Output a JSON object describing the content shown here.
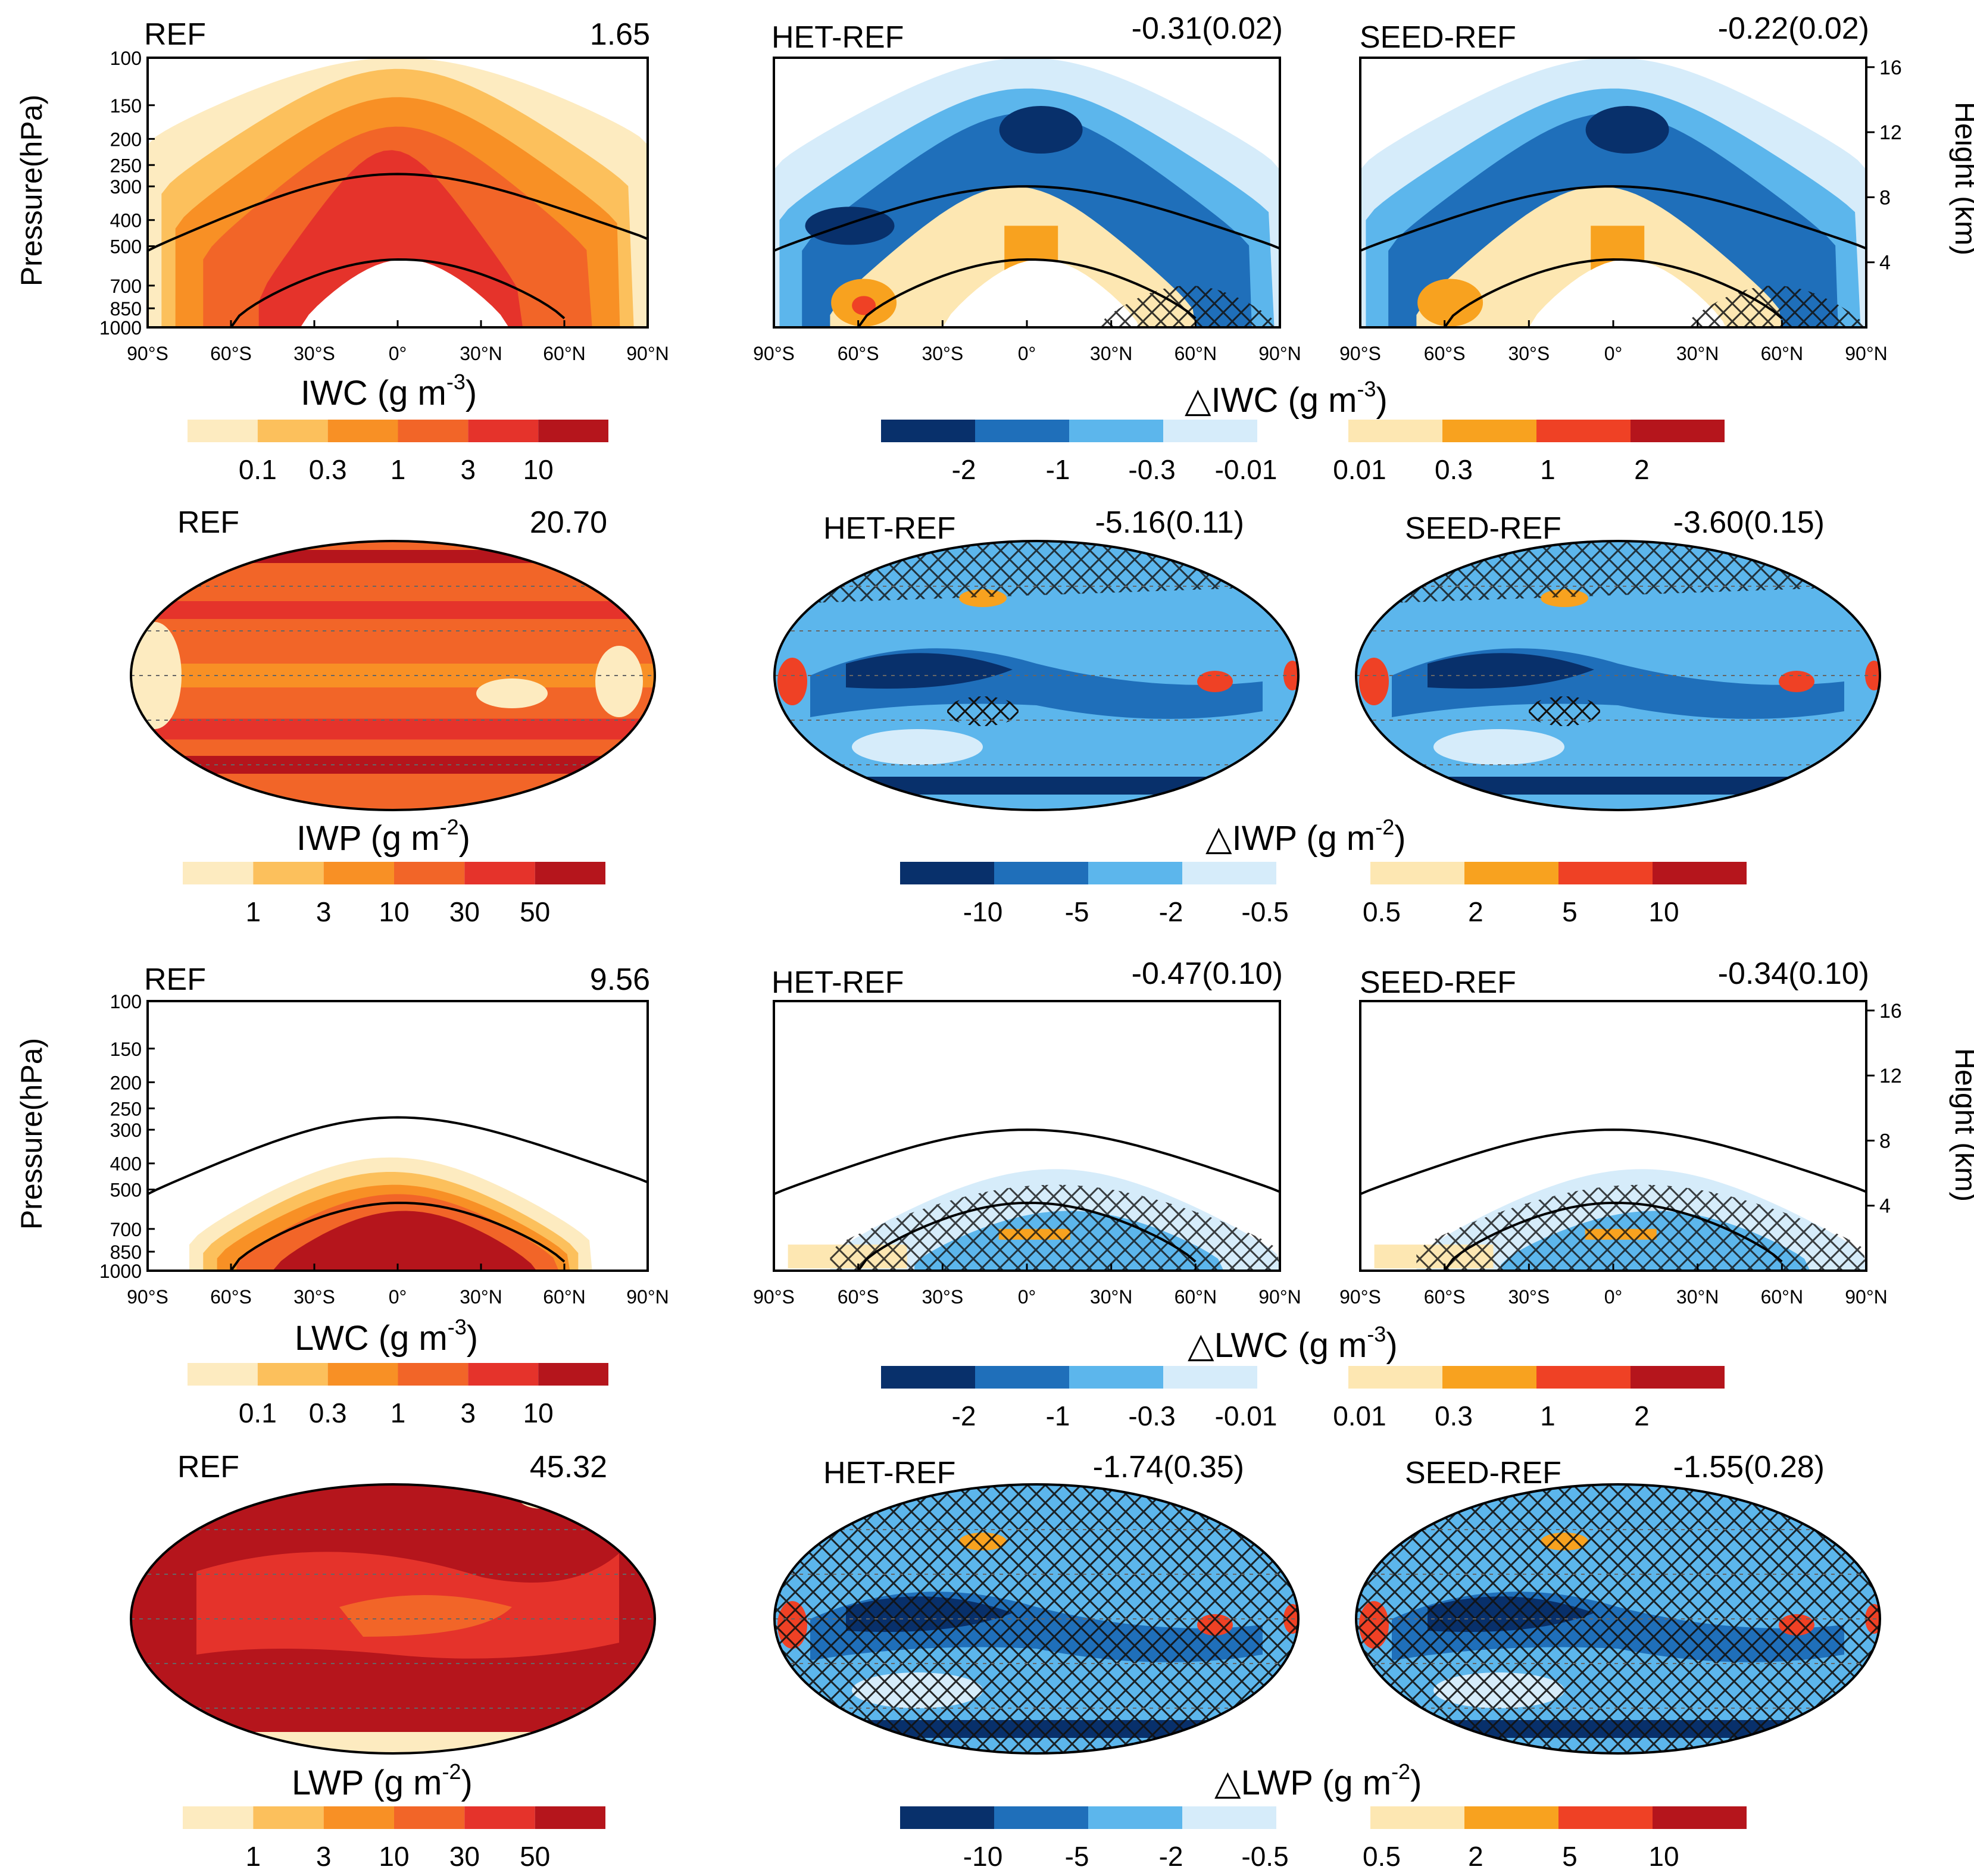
{
  "row1": {
    "ref": {
      "title": "REF",
      "value": "1.65"
    },
    "het": {
      "title": "HET-REF",
      "value": "-0.31(0.02)"
    },
    "seed": {
      "title": "SEED-REF",
      "value": "-0.22(0.02)"
    },
    "label_left": "IWC (g m",
    "label_left_sup": "-3",
    "label_right": "IWC (g m",
    "label_right_sup": "-3"
  },
  "row2": {
    "ref": {
      "title": "REF",
      "value": "20.70"
    },
    "het": {
      "title": "HET-REF",
      "value": "-5.16(0.11)"
    },
    "seed": {
      "title": "SEED-REF",
      "value": "-3.60(0.15)"
    },
    "label_left": "IWP (g m",
    "label_left_sup": "-2",
    "label_right": "IWP (g m",
    "label_right_sup": "-2"
  },
  "row3": {
    "ref": {
      "title": "REF",
      "value": "9.56"
    },
    "het": {
      "title": "HET-REF",
      "value": "-0.47(0.10)"
    },
    "seed": {
      "title": "SEED-REF",
      "value": "-0.34(0.10)"
    },
    "label_left": "LWC (g m",
    "label_left_sup": "-3",
    "label_right": "LWC (g m",
    "label_right_sup": "-3"
  },
  "row4": {
    "ref": {
      "title": "REF",
      "value": "45.32"
    },
    "het": {
      "title": "HET-REF",
      "value": "-1.74(0.35)"
    },
    "seed": {
      "title": "SEED-REF",
      "value": "-1.55(0.28)"
    },
    "label_left": "LWP (g m",
    "label_left_sup": "-2",
    "label_right": "LWP (g m",
    "label_right_sup": "-2"
  },
  "delta_symbol": "△",
  "axes": {
    "pressure_label": "Pressure(hPa)",
    "height_label": "Height (km)",
    "pressure_ticks": [
      "100",
      "150",
      "200",
      "250",
      "300",
      "400",
      "500",
      "700",
      "850",
      "1000"
    ],
    "height_ticks": [
      "16",
      "12",
      "8",
      "4"
    ],
    "lat_ticks": [
      "90°S",
      "60°S",
      "30°S",
      "0°",
      "30°N",
      "60°N",
      "90°N"
    ]
  },
  "colorbars": {
    "ref_content_ticks": [
      "0.1",
      "0.3",
      "1",
      "3",
      "10"
    ],
    "ref_path_ticks": [
      "1",
      "3",
      "10",
      "30",
      "50"
    ],
    "diff_content_neg_ticks": [
      "-2",
      "-1",
      "-0.3",
      "-0.01"
    ],
    "diff_content_pos_ticks": [
      "0.01",
      "0.3",
      "1",
      "2"
    ],
    "diff_path_neg_ticks": [
      "-10",
      "-5",
      "-2",
      "-0.5"
    ],
    "diff_path_pos_ticks": [
      "0.5",
      "2",
      "5",
      "10"
    ],
    "ref_colors": [
      "#fdebc0",
      "#fcc05c",
      "#f89025",
      "#f26528",
      "#e5332b",
      "#b5151c"
    ],
    "neg_colors": [
      "#08306b",
      "#1f6fba",
      "#5cb6ec",
      "#d6ecfa"
    ],
    "pos_colors": [
      "#fde7b2",
      "#f8a21f",
      "#ef4125",
      "#b5151c"
    ]
  },
  "chart_data": [
    {
      "type": "heatmap",
      "title": "REF",
      "panel_value": "1.65",
      "variable": "IWC",
      "unit": "g m-3",
      "xlabel": "",
      "ylabel": "Pressure(hPa)",
      "x": [
        "90°S",
        "60°S",
        "30°S",
        "0°",
        "30°N",
        "60°N",
        "90°N"
      ],
      "y": [
        "100",
        "150",
        "200",
        "250",
        "300",
        "400",
        "500",
        "700",
        "850",
        "1000"
      ],
      "colorbar": [
        "0.1",
        "0.3",
        "1",
        "3",
        "10"
      ]
    },
    {
      "type": "heatmap",
      "title": "HET-REF",
      "panel_value": "-0.31(0.02)",
      "variable": "ΔIWC",
      "unit": "g m-3",
      "colorbar": [
        "-2",
        "-1",
        "-0.3",
        "-0.01",
        "0.01",
        "0.3",
        "1",
        "2"
      ]
    },
    {
      "type": "heatmap",
      "title": "SEED-REF",
      "panel_value": "-0.22(0.02)",
      "variable": "ΔIWC",
      "unit": "g m-3",
      "y2label": "Height (km)",
      "y2": [
        "16",
        "12",
        "8",
        "4"
      ]
    },
    {
      "type": "heatmap",
      "title": "REF",
      "panel_value": "20.70",
      "variable": "IWP",
      "unit": "g m-2",
      "colorbar": [
        "1",
        "3",
        "10",
        "30",
        "50"
      ]
    },
    {
      "type": "heatmap",
      "title": "HET-REF",
      "panel_value": "-5.16(0.11)",
      "variable": "ΔIWP",
      "unit": "g m-2",
      "colorbar": [
        "-10",
        "-5",
        "-2",
        "-0.5",
        "0.5",
        "2",
        "5",
        "10"
      ]
    },
    {
      "type": "heatmap",
      "title": "SEED-REF",
      "panel_value": "-3.60(0.15)",
      "variable": "ΔIWP",
      "unit": "g m-2"
    },
    {
      "type": "heatmap",
      "title": "REF",
      "panel_value": "9.56",
      "variable": "LWC",
      "unit": "g m-3",
      "colorbar": [
        "0.1",
        "0.3",
        "1",
        "3",
        "10"
      ]
    },
    {
      "type": "heatmap",
      "title": "HET-REF",
      "panel_value": "-0.47(0.10)",
      "variable": "ΔLWC",
      "unit": "g m-3"
    },
    {
      "type": "heatmap",
      "title": "SEED-REF",
      "panel_value": "-0.34(0.10)",
      "variable": "ΔLWC",
      "unit": "g m-3"
    },
    {
      "type": "heatmap",
      "title": "REF",
      "panel_value": "45.32",
      "variable": "LWP",
      "unit": "g m-2",
      "colorbar": [
        "1",
        "3",
        "10",
        "30",
        "50"
      ]
    },
    {
      "type": "heatmap",
      "title": "HET-REF",
      "panel_value": "-1.74(0.35)",
      "variable": "ΔLWP",
      "unit": "g m-2"
    },
    {
      "type": "heatmap",
      "title": "SEED-REF",
      "panel_value": "-1.55(0.28)",
      "variable": "ΔLWP",
      "unit": "g m-2"
    }
  ]
}
